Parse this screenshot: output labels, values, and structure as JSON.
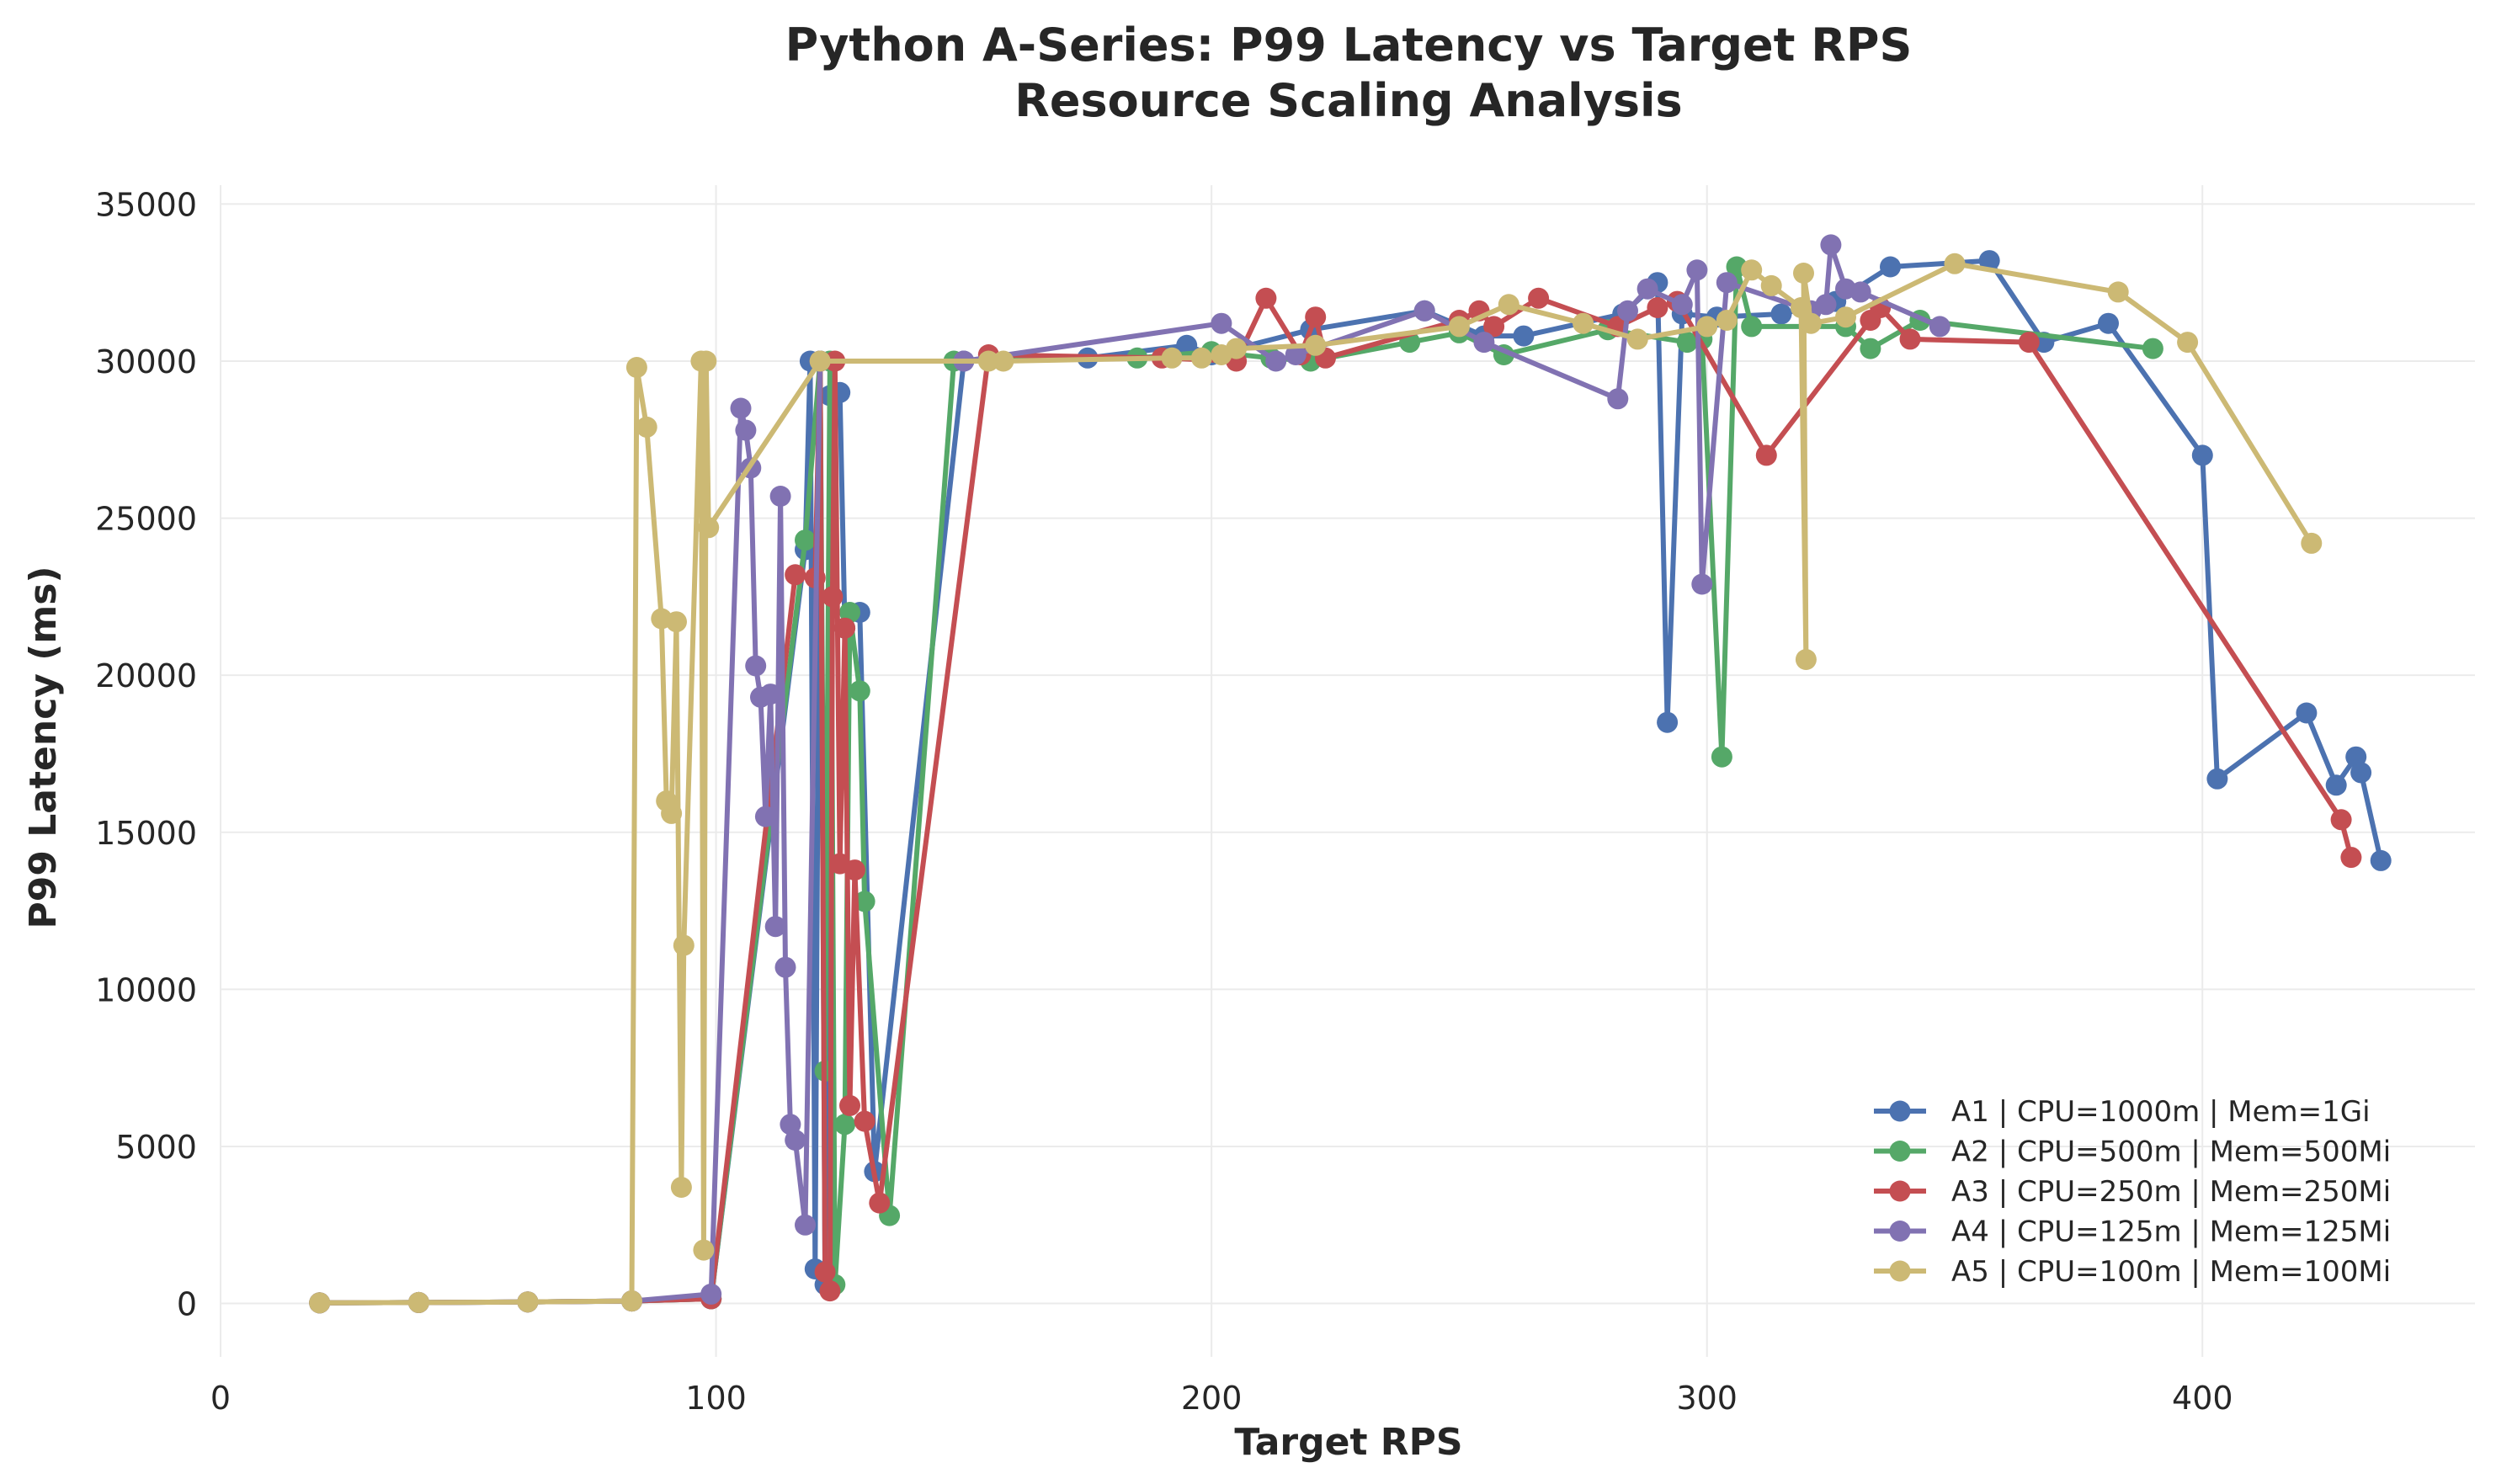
{
  "chart_data": {
    "type": "line",
    "title": "Python A-Series: P99 Latency vs Target RPS",
    "subtitle": "Resource Scaling Analysis",
    "xlabel": "Target RPS",
    "ylabel": "P99 Latency (ms)",
    "xlim": [
      0,
      455
    ],
    "ylim": [
      -1700,
      35600
    ],
    "xticks": [
      0,
      100,
      200,
      300,
      400
    ],
    "yticks": [
      0,
      5000,
      10000,
      15000,
      20000,
      25000,
      30000,
      35000
    ],
    "grid": true,
    "legend_position": "lower-right",
    "series": [
      {
        "name": "A1 | CPU=1000m | Mem=1Gi",
        "color": "#4c72b0",
        "points": [
          [
            20,
            20
          ],
          [
            40,
            30
          ],
          [
            62,
            50
          ],
          [
            83,
            80
          ],
          [
            99,
            150
          ],
          [
            118,
            24000
          ],
          [
            119,
            30000
          ],
          [
            120,
            1100
          ],
          [
            121,
            30000
          ],
          [
            122,
            600
          ],
          [
            123,
            28900
          ],
          [
            124,
            29000
          ],
          [
            125,
            29000
          ],
          [
            126,
            21500
          ],
          [
            129,
            22000
          ],
          [
            132,
            4200
          ],
          [
            150,
            30000
          ],
          [
            175,
            30100
          ],
          [
            195,
            30500
          ],
          [
            200,
            30200
          ],
          [
            220,
            31000
          ],
          [
            243,
            31600
          ],
          [
            255,
            30800
          ],
          [
            263,
            30800
          ],
          [
            283,
            31500
          ],
          [
            290,
            32500
          ],
          [
            292,
            18500
          ],
          [
            295,
            31500
          ],
          [
            302,
            31400
          ],
          [
            315,
            31500
          ],
          [
            326,
            31900
          ],
          [
            337,
            33000
          ],
          [
            357,
            33200
          ],
          [
            368,
            30600
          ],
          [
            381,
            31200
          ],
          [
            400,
            27000
          ],
          [
            403,
            16700
          ],
          [
            421,
            18800
          ],
          [
            427,
            16500
          ],
          [
            431,
            17400
          ],
          [
            432,
            16900
          ],
          [
            436,
            14100
          ]
        ]
      },
      {
        "name": "A2 | CPU=500m | Mem=500Mi",
        "color": "#55a868",
        "points": [
          [
            20,
            20
          ],
          [
            40,
            30
          ],
          [
            62,
            50
          ],
          [
            83,
            80
          ],
          [
            99,
            150
          ],
          [
            118,
            24300
          ],
          [
            121,
            30000
          ],
          [
            122,
            7400
          ],
          [
            123,
            30000
          ],
          [
            124,
            600
          ],
          [
            126,
            5700
          ],
          [
            127,
            22000
          ],
          [
            129,
            19500
          ],
          [
            130,
            12800
          ],
          [
            135,
            2800
          ],
          [
            148,
            30000
          ],
          [
            185,
            30100
          ],
          [
            200,
            30300
          ],
          [
            212,
            30100
          ],
          [
            220,
            30000
          ],
          [
            240,
            30600
          ],
          [
            250,
            30900
          ],
          [
            259,
            30200
          ],
          [
            280,
            31000
          ],
          [
            296,
            30600
          ],
          [
            299,
            30700
          ],
          [
            303,
            17400
          ],
          [
            306,
            33000
          ],
          [
            309,
            31100
          ],
          [
            328,
            31100
          ],
          [
            333,
            30400
          ],
          [
            343,
            31300
          ],
          [
            390,
            30400
          ]
        ]
      },
      {
        "name": "A3 | CPU=250m | Mem=250Mi",
        "color": "#c44e52",
        "points": [
          [
            20,
            20
          ],
          [
            40,
            30
          ],
          [
            62,
            50
          ],
          [
            83,
            80
          ],
          [
            99,
            150
          ],
          [
            116,
            23200
          ],
          [
            120,
            23100
          ],
          [
            121,
            30000
          ],
          [
            122,
            1000
          ],
          [
            123,
            400
          ],
          [
            123.5,
            22500
          ],
          [
            124,
            30000
          ],
          [
            125,
            14000
          ],
          [
            126,
            21500
          ],
          [
            127,
            6300
          ],
          [
            128,
            13800
          ],
          [
            130,
            5800
          ],
          [
            133,
            3200
          ],
          [
            155,
            30200
          ],
          [
            190,
            30100
          ],
          [
            205,
            30000
          ],
          [
            211,
            32000
          ],
          [
            218,
            30200
          ],
          [
            221,
            31400
          ],
          [
            223,
            30100
          ],
          [
            250,
            31300
          ],
          [
            254,
            31600
          ],
          [
            257,
            31100
          ],
          [
            266,
            32000
          ],
          [
            282,
            31100
          ],
          [
            290,
            31700
          ],
          [
            294,
            31900
          ],
          [
            312,
            27000
          ],
          [
            333,
            31300
          ],
          [
            335,
            31700
          ],
          [
            341,
            30700
          ],
          [
            365,
            30600
          ],
          [
            428,
            15400
          ],
          [
            430,
            14200
          ]
        ]
      },
      {
        "name": "A4 | CPU=125m | Mem=125Mi",
        "color": "#8172b2",
        "points": [
          [
            20,
            20
          ],
          [
            40,
            30
          ],
          [
            62,
            50
          ],
          [
            83,
            80
          ],
          [
            99,
            300
          ],
          [
            105,
            28500
          ],
          [
            106,
            27800
          ],
          [
            107,
            26600
          ],
          [
            108,
            20300
          ],
          [
            109,
            19300
          ],
          [
            110,
            15500
          ],
          [
            111,
            19400
          ],
          [
            112,
            12000
          ],
          [
            113,
            25700
          ],
          [
            114,
            10700
          ],
          [
            115,
            5700
          ],
          [
            116,
            5200
          ],
          [
            118,
            2500
          ],
          [
            121,
            30000
          ],
          [
            150,
            30000
          ],
          [
            202,
            31200
          ],
          [
            213,
            30000
          ],
          [
            217,
            30200
          ],
          [
            243,
            31600
          ],
          [
            255,
            30600
          ],
          [
            282,
            28800
          ],
          [
            284,
            31600
          ],
          [
            288,
            32300
          ],
          [
            295,
            31800
          ],
          [
            298,
            32900
          ],
          [
            299,
            22900
          ],
          [
            304,
            32500
          ],
          [
            321,
            31600
          ],
          [
            324,
            31800
          ],
          [
            325,
            33700
          ],
          [
            328,
            32300
          ],
          [
            331,
            32200
          ],
          [
            347,
            31100
          ]
        ]
      },
      {
        "name": "A5 | CPU=100m | Mem=100Mi",
        "color": "#ccb974",
        "points": [
          [
            20,
            20
          ],
          [
            40,
            30
          ],
          [
            62,
            50
          ],
          [
            83,
            80
          ],
          [
            84,
            29800
          ],
          [
            86,
            27900
          ],
          [
            89,
            21800
          ],
          [
            90,
            16000
          ],
          [
            91,
            15600
          ],
          [
            92,
            21700
          ],
          [
            93,
            3700
          ],
          [
            93.5,
            11400
          ],
          [
            97,
            30000
          ],
          [
            97.5,
            1700
          ],
          [
            98,
            30000
          ],
          [
            98.5,
            24700
          ],
          [
            121,
            30000
          ],
          [
            155,
            30000
          ],
          [
            158,
            30000
          ],
          [
            192,
            30100
          ],
          [
            198,
            30100
          ],
          [
            202,
            30200
          ],
          [
            205,
            30400
          ],
          [
            221,
            30500
          ],
          [
            250,
            31100
          ],
          [
            260,
            31800
          ],
          [
            275,
            31200
          ],
          [
            286,
            30700
          ],
          [
            300,
            31100
          ],
          [
            304,
            31300
          ],
          [
            309,
            32900
          ],
          [
            313,
            32400
          ],
          [
            319,
            31700
          ],
          [
            320,
            20500
          ],
          [
            319.5,
            32800
          ],
          [
            321,
            31200
          ],
          [
            328,
            31400
          ],
          [
            350,
            33100
          ],
          [
            383,
            32200
          ],
          [
            397,
            30600
          ],
          [
            422,
            24200
          ]
        ]
      }
    ]
  }
}
